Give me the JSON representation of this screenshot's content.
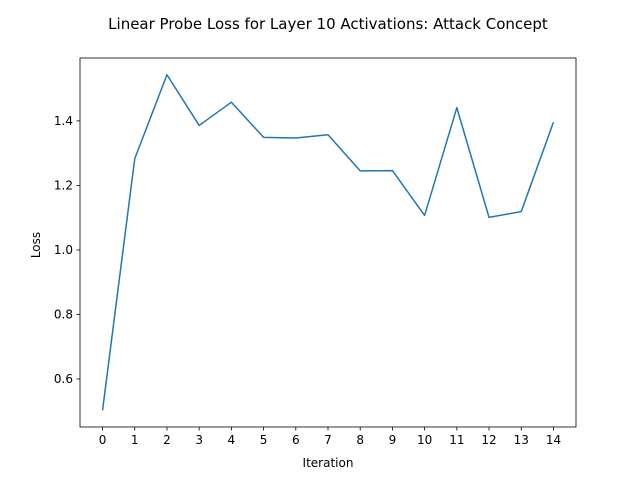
{
  "chart_data": {
    "type": "line",
    "title": "Linear Probe Loss for Layer 10 Activations: Attack Concept",
    "xlabel": "Iteration",
    "ylabel": "Loss",
    "x": [
      0,
      1,
      2,
      3,
      4,
      5,
      6,
      7,
      8,
      9,
      10,
      11,
      12,
      13,
      14
    ],
    "series": [
      {
        "values": [
          0.503,
          1.283,
          1.543,
          1.386,
          1.458,
          1.349,
          1.347,
          1.357,
          1.245,
          1.246,
          1.107,
          1.441,
          1.101,
          1.119,
          1.396
        ],
        "color": "#1f77b4"
      }
    ],
    "xlim": [
      -0.7,
      14.7
    ],
    "ylim": [
      0.4512,
      1.595
    ],
    "xticks": [
      "0",
      "1",
      "2",
      "3",
      "4",
      "5",
      "6",
      "7",
      "8",
      "9",
      "10",
      "11",
      "12",
      "13",
      "14"
    ],
    "yticks": [
      "0.6",
      "0.8",
      "1.0",
      "1.2",
      "1.4"
    ],
    "grid": false,
    "legend": "none"
  }
}
